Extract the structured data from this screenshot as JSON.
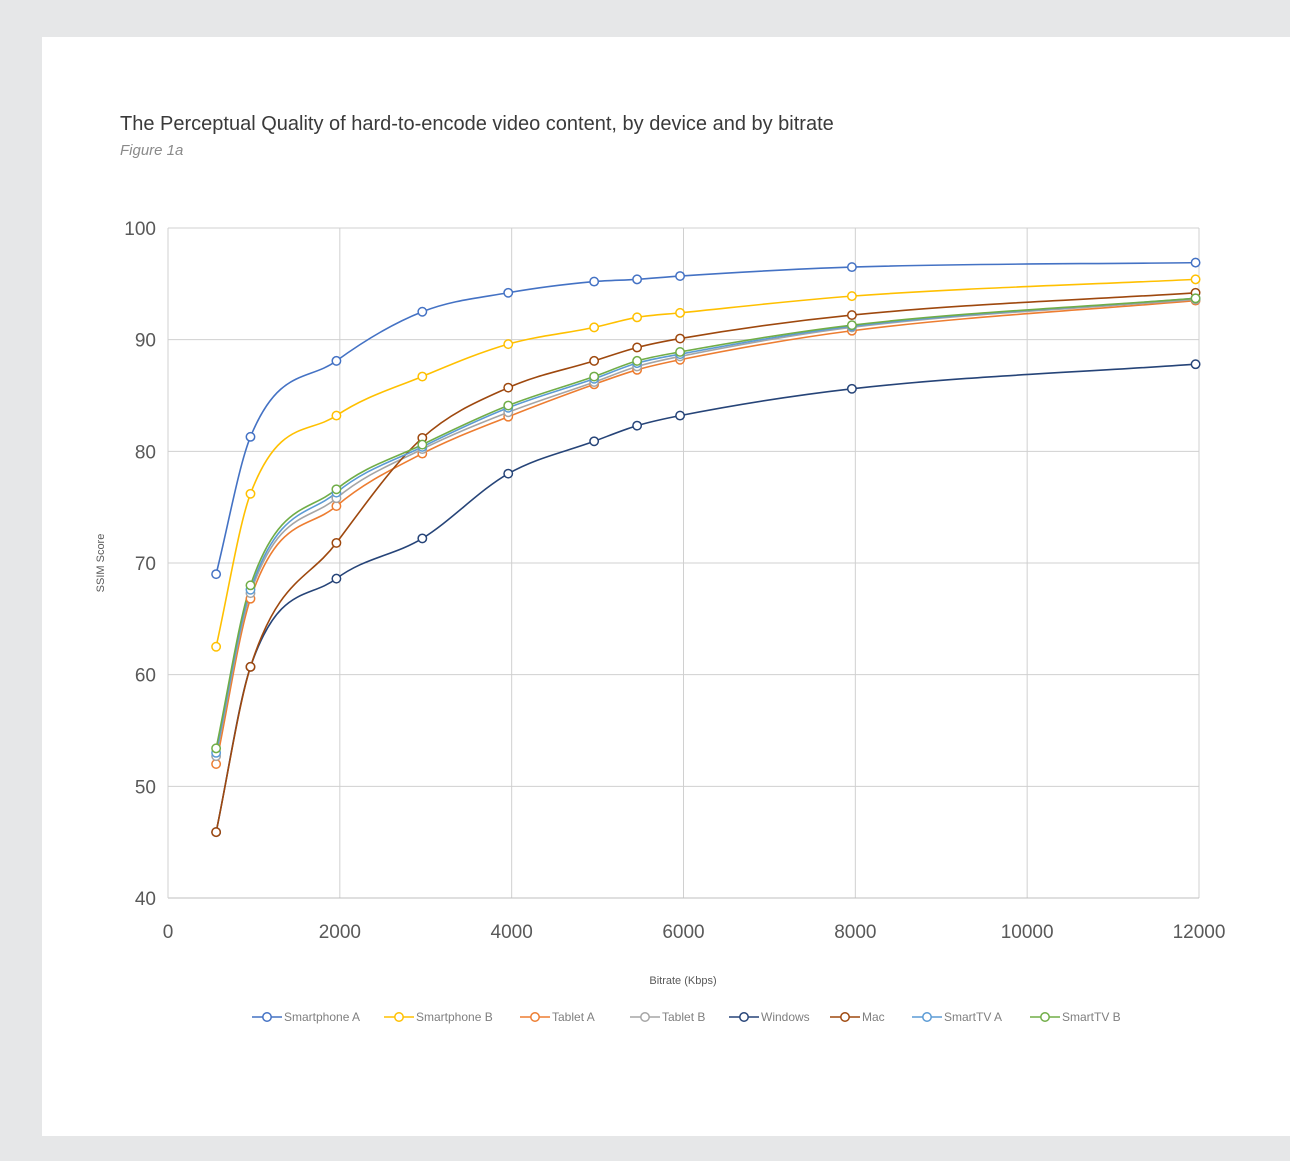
{
  "page": {
    "title": "The Perceptual Quality of hard-to-encode video content, by device and by bitrate",
    "subtitle": "Figure 1a"
  },
  "chart_data": {
    "type": "line",
    "title": "The Perceptual Quality of hard-to-encode video content, by device and by bitrate",
    "subtitle": "Figure 1a",
    "xlabel": "Bitrate (Kbps)",
    "ylabel": "SSIM Score",
    "xlim": [
      0,
      12000
    ],
    "ylim": [
      40,
      100
    ],
    "xticks": [
      0,
      2000,
      4000,
      6000,
      8000,
      10000,
      12000
    ],
    "yticks": [
      40,
      50,
      60,
      70,
      80,
      90,
      100
    ],
    "grid": true,
    "legend_position": "bottom",
    "x": [
      560,
      960,
      1960,
      2960,
      3960,
      4960,
      5460,
      5960,
      7960,
      11960
    ],
    "series": [
      {
        "name": "Smartphone A",
        "color": "#4472c4",
        "values": [
          69.0,
          81.3,
          88.1,
          92.5,
          94.2,
          95.2,
          95.4,
          95.7,
          96.5,
          96.9
        ]
      },
      {
        "name": "Smartphone B",
        "color": "#ffc000",
        "values": [
          62.5,
          76.2,
          83.2,
          86.7,
          89.6,
          91.1,
          92.0,
          92.4,
          93.9,
          95.4
        ]
      },
      {
        "name": "Tablet A",
        "color": "#ed7d31",
        "values": [
          52.0,
          66.8,
          75.1,
          79.8,
          83.1,
          86.0,
          87.3,
          88.2,
          90.8,
          93.5
        ]
      },
      {
        "name": "Tablet B",
        "color": "#a5a5a5",
        "values": [
          52.7,
          67.3,
          75.8,
          80.2,
          83.5,
          86.2,
          87.6,
          88.5,
          91.1,
          93.6
        ]
      },
      {
        "name": "Windows",
        "color": "#264478",
        "values": [
          45.9,
          60.7,
          68.6,
          72.2,
          78.0,
          80.9,
          82.3,
          83.2,
          85.6,
          87.8
        ]
      },
      {
        "name": "Mac",
        "color": "#9e480e",
        "values": [
          45.9,
          60.7,
          71.8,
          81.2,
          85.7,
          88.1,
          89.3,
          90.1,
          92.2,
          94.2
        ]
      },
      {
        "name": "SmartTV A",
        "color": "#5b9bd5",
        "values": [
          53.0,
          67.6,
          76.3,
          80.4,
          83.9,
          86.5,
          87.9,
          88.7,
          91.2,
          93.7
        ]
      },
      {
        "name": "SmartTV B",
        "color": "#70ad47",
        "values": [
          53.4,
          68.0,
          76.6,
          80.6,
          84.1,
          86.7,
          88.1,
          88.9,
          91.3,
          93.7
        ]
      }
    ]
  }
}
